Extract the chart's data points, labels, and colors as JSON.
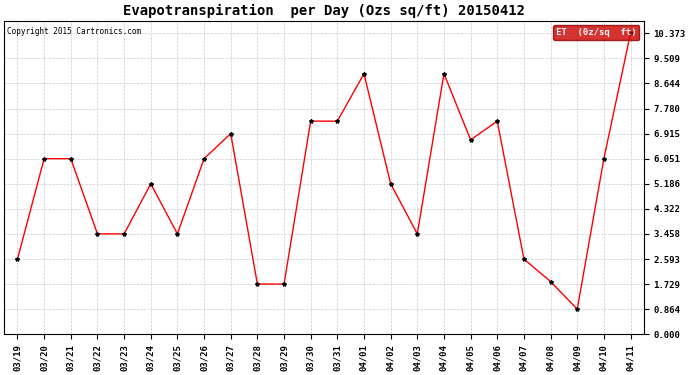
{
  "title": "Evapotranspiration  per Day (Ozs sq/ft) 20150412",
  "copyright": "Copyright 2015 Cartronics.com",
  "legend_label": "ET  (0z/sq  ft)",
  "x_labels": [
    "03/19",
    "03/20",
    "03/21",
    "03/22",
    "03/23",
    "03/24",
    "03/25",
    "03/26",
    "03/27",
    "03/28",
    "03/29",
    "03/30",
    "03/31",
    "04/01",
    "04/02",
    "04/03",
    "04/04",
    "04/05",
    "04/06",
    "04/07",
    "04/08",
    "04/09",
    "04/10",
    "04/11"
  ],
  "y_values": [
    2.593,
    6.051,
    6.051,
    3.458,
    3.458,
    5.186,
    3.458,
    6.051,
    6.915,
    1.729,
    1.729,
    7.344,
    7.344,
    8.98,
    5.186,
    3.458,
    8.98,
    6.7,
    7.344,
    2.593,
    1.815,
    0.864,
    6.051,
    10.373
  ],
  "y_ticks": [
    0.0,
    0.864,
    1.729,
    2.593,
    3.458,
    4.322,
    5.186,
    6.051,
    6.915,
    7.78,
    8.644,
    9.509,
    10.373
  ],
  "ylim": [
    0.0,
    10.8
  ],
  "line_color": "#ff0000",
  "marker": "*",
  "marker_color": "#000000",
  "marker_size": 3,
  "grid_color": "#cccccc",
  "bg_color": "#ffffff",
  "title_fontsize": 10,
  "tick_fontsize": 6.5,
  "legend_bg": "#cc0000",
  "legend_text_color": "#ffffff",
  "fig_width": 6.9,
  "fig_height": 3.75,
  "dpi": 100
}
